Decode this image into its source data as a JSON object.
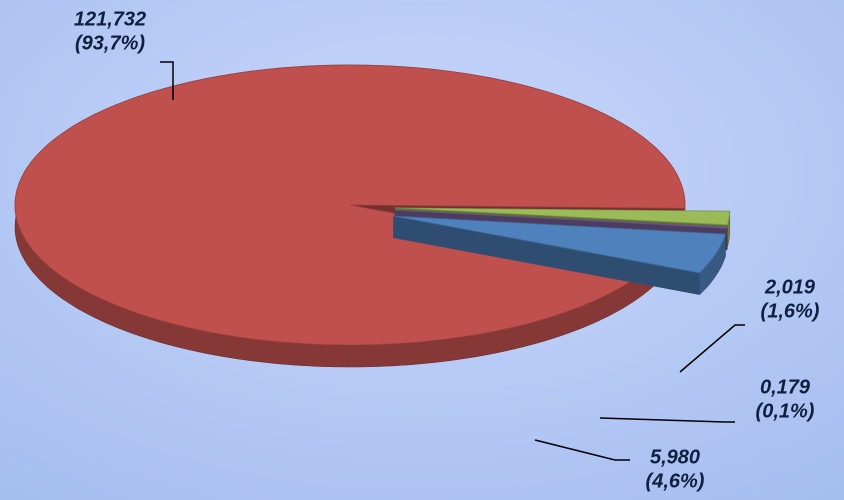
{
  "chart_data": {
    "type": "pie",
    "values": [
      121.732,
      2.019,
      0.179,
      5.98
    ],
    "value_labels": [
      "121,732",
      "2,019",
      "0,179",
      "5,980"
    ],
    "percents": [
      93.7,
      1.6,
      0.1,
      4.6
    ],
    "percent_labels": [
      "(93,7%)",
      "(1,6%)",
      "(0,1%)",
      "(4,6%)"
    ],
    "colors": [
      "#c0504d",
      "#9bbb59",
      "#8064a2",
      "#4f81bd"
    ]
  }
}
